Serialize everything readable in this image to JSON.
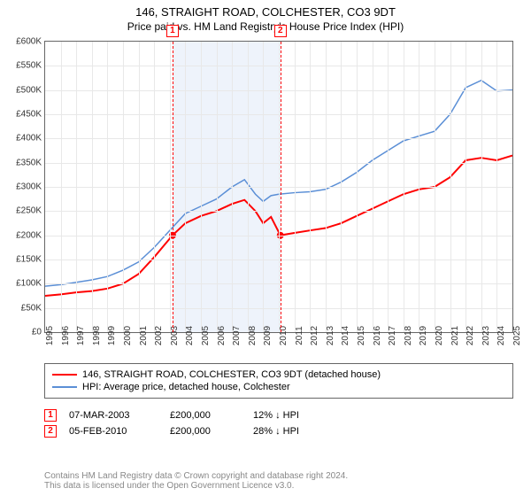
{
  "title": "146, STRAIGHT ROAD, COLCHESTER, CO3 9DT",
  "subtitle": "Price paid vs. HM Land Registry's House Price Index (HPI)",
  "chart": {
    "type": "line",
    "background_color": "#ffffff",
    "grid_color": "#e8e8e8",
    "axis_color": "#666666",
    "ylim": [
      0,
      600000
    ],
    "ytick_step": 50000,
    "yticks": [
      "£0",
      "£50K",
      "£100K",
      "£150K",
      "£200K",
      "£250K",
      "£300K",
      "£350K",
      "£400K",
      "£450K",
      "£500K",
      "£550K",
      "£600K"
    ],
    "xlim": [
      1995,
      2025
    ],
    "xticks": [
      1995,
      1996,
      1997,
      1998,
      1999,
      2000,
      2001,
      2002,
      2003,
      2004,
      2005,
      2006,
      2007,
      2008,
      2009,
      2010,
      2011,
      2012,
      2013,
      2014,
      2015,
      2016,
      2017,
      2018,
      2019,
      2020,
      2021,
      2022,
      2023,
      2024,
      2025
    ],
    "shaded_range": {
      "start": 2003.18,
      "end": 2010.1,
      "fill": "#eef3fb"
    },
    "sale_markers": [
      {
        "num": "1",
        "x": 2003.18,
        "y": 200000,
        "line_color": "#ff0000",
        "box_border": "#ff0000",
        "box_text": "#ff0000"
      },
      {
        "num": "2",
        "x": 2010.1,
        "y": 200000,
        "line_color": "#ff0000",
        "box_border": "#ff0000",
        "box_text": "#ff0000"
      }
    ],
    "series": [
      {
        "name": "property",
        "label": "146, STRAIGHT ROAD, COLCHESTER, CO3 9DT (detached house)",
        "color": "#ff0000",
        "line_width": 2,
        "points": [
          [
            1995,
            75000
          ],
          [
            1996,
            78000
          ],
          [
            1997,
            82000
          ],
          [
            1998,
            85000
          ],
          [
            1999,
            90000
          ],
          [
            2000,
            100000
          ],
          [
            2001,
            120000
          ],
          [
            2002,
            155000
          ],
          [
            2003.18,
            200000
          ],
          [
            2004,
            225000
          ],
          [
            2005,
            240000
          ],
          [
            2006,
            250000
          ],
          [
            2007,
            265000
          ],
          [
            2007.8,
            273000
          ],
          [
            2008.5,
            250000
          ],
          [
            2009,
            225000
          ],
          [
            2009.5,
            238000
          ],
          [
            2010.1,
            200000
          ],
          [
            2011,
            205000
          ],
          [
            2012,
            210000
          ],
          [
            2013,
            215000
          ],
          [
            2014,
            225000
          ],
          [
            2015,
            240000
          ],
          [
            2016,
            255000
          ],
          [
            2017,
            270000
          ],
          [
            2018,
            285000
          ],
          [
            2019,
            295000
          ],
          [
            2020,
            300000
          ],
          [
            2021,
            320000
          ],
          [
            2022,
            355000
          ],
          [
            2023,
            360000
          ],
          [
            2024,
            355000
          ],
          [
            2025,
            365000
          ]
        ]
      },
      {
        "name": "hpi",
        "label": "HPI: Average price, detached house, Colchester",
        "color": "#5b8fd6",
        "line_width": 1.5,
        "points": [
          [
            1995,
            95000
          ],
          [
            1996,
            98000
          ],
          [
            1997,
            103000
          ],
          [
            1998,
            108000
          ],
          [
            1999,
            115000
          ],
          [
            2000,
            128000
          ],
          [
            2001,
            145000
          ],
          [
            2002,
            175000
          ],
          [
            2003,
            210000
          ],
          [
            2004,
            245000
          ],
          [
            2005,
            260000
          ],
          [
            2006,
            275000
          ],
          [
            2007,
            300000
          ],
          [
            2007.8,
            315000
          ],
          [
            2008.5,
            285000
          ],
          [
            2009,
            270000
          ],
          [
            2009.5,
            282000
          ],
          [
            2010,
            285000
          ],
          [
            2011,
            288000
          ],
          [
            2012,
            290000
          ],
          [
            2013,
            295000
          ],
          [
            2014,
            310000
          ],
          [
            2015,
            330000
          ],
          [
            2016,
            355000
          ],
          [
            2017,
            375000
          ],
          [
            2018,
            395000
          ],
          [
            2019,
            405000
          ],
          [
            2020,
            415000
          ],
          [
            2021,
            450000
          ],
          [
            2022,
            505000
          ],
          [
            2023,
            520000
          ],
          [
            2024,
            498000
          ],
          [
            2025,
            500000
          ]
        ]
      }
    ],
    "sale_dots": {
      "color": "#ff0000",
      "radius": 4
    }
  },
  "legend": [
    {
      "color": "#ff0000",
      "width": 2,
      "label": "146, STRAIGHT ROAD, COLCHESTER, CO3 9DT (detached house)"
    },
    {
      "color": "#5b8fd6",
      "width": 1.5,
      "label": "HPI: Average price, detached house, Colchester"
    }
  ],
  "sales": [
    {
      "num": "1",
      "date": "07-MAR-2003",
      "price": "£200,000",
      "delta": "12% ↓ HPI",
      "border": "#ff0000",
      "text": "#ff0000"
    },
    {
      "num": "2",
      "date": "05-FEB-2010",
      "price": "£200,000",
      "delta": "28% ↓ HPI",
      "border": "#ff0000",
      "text": "#ff0000"
    }
  ],
  "attribution_line1": "Contains HM Land Registry data © Crown copyright and database right 2024.",
  "attribution_line2": "This data is licensed under the Open Government Licence v3.0."
}
